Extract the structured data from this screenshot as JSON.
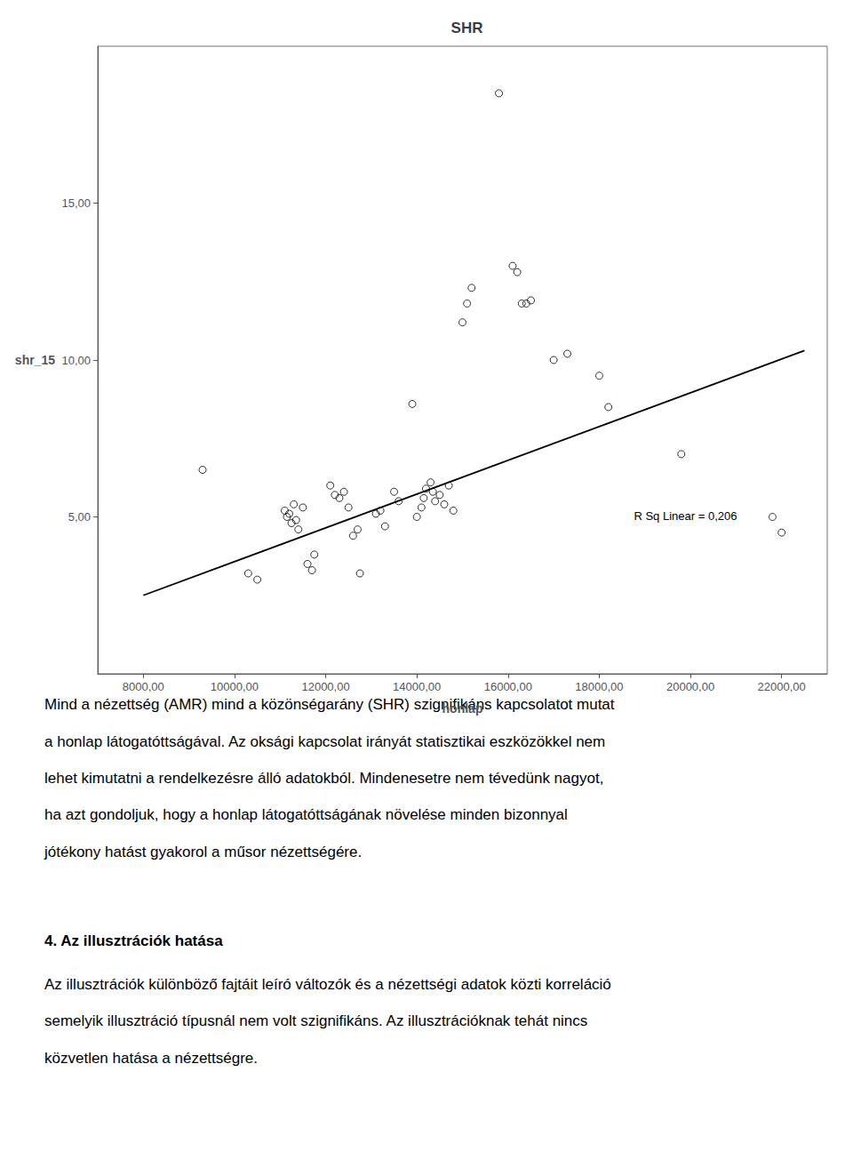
{
  "chart_data": {
    "type": "scatter",
    "title": "SHR",
    "xlabel": "honlap",
    "ylabel": "shr_15",
    "xlim": [
      7000,
      23000
    ],
    "ylim": [
      0,
      20
    ],
    "xticks": [
      {
        "value": 8000,
        "label": "8000,00"
      },
      {
        "value": 10000,
        "label": "10000,00"
      },
      {
        "value": 12000,
        "label": "12000,00"
      },
      {
        "value": 14000,
        "label": "14000,00"
      },
      {
        "value": 16000,
        "label": "16000,00"
      },
      {
        "value": 18000,
        "label": "18000,00"
      },
      {
        "value": 20000,
        "label": "20000,00"
      },
      {
        "value": 22000,
        "label": "22000,00"
      }
    ],
    "yticks": [
      {
        "value": 5.0,
        "label": "5,00"
      },
      {
        "value": 10.0,
        "label": "10,00"
      },
      {
        "value": 15.0,
        "label": "15,00"
      }
    ],
    "grid": false,
    "series": [
      {
        "type": "scatter",
        "color": "#000000",
        "marker": "open_circle",
        "x": [
          9300,
          10300,
          10500,
          11100,
          11150,
          11200,
          11250,
          11300,
          11350,
          11400,
          11500,
          11600,
          11700,
          11750,
          12100,
          12200,
          12300,
          12400,
          12500,
          12600,
          12700,
          12750,
          13100,
          13200,
          13300,
          13500,
          13600,
          13900,
          14000,
          14100,
          14150,
          14200,
          14300,
          14350,
          14400,
          14500,
          14600,
          14700,
          14800,
          15000,
          15100,
          15200,
          15800,
          16100,
          16200,
          16300,
          16400,
          16500,
          17000,
          17300,
          18000,
          18200,
          19800,
          21800,
          22000
        ],
        "values": [
          6.5,
          3.2,
          3.0,
          5.2,
          5.0,
          5.1,
          4.8,
          5.4,
          4.9,
          4.6,
          5.3,
          3.5,
          3.3,
          3.8,
          6.0,
          5.7,
          5.6,
          5.8,
          5.3,
          4.4,
          4.6,
          3.2,
          5.1,
          5.2,
          4.7,
          5.8,
          5.5,
          8.6,
          5.0,
          5.3,
          5.6,
          5.9,
          6.1,
          5.8,
          5.5,
          5.7,
          5.4,
          6.0,
          5.2,
          11.2,
          11.8,
          12.3,
          18.5,
          13.0,
          12.8,
          11.8,
          11.8,
          11.9,
          10.0,
          10.2,
          9.5,
          8.5,
          7.0,
          5.0,
          4.5
        ]
      },
      {
        "type": "line",
        "color": "#000000",
        "x": [
          8000,
          22500
        ],
        "values": [
          2.5,
          10.3
        ]
      }
    ],
    "annotations": [
      "R Sq Linear = 0,206"
    ],
    "body_text": [
      "Mind a nézettség (AMR) mind a közönségarány (SHR) szignifikáns kapcsolatot mutat",
      "a honlap látogatóttságával. Az oksági kapcsolat irányát statisztikai eszközökkel nem",
      "lehet kimutatni a rendelkezésre álló adatokból. Mindenesetre nem tévedünk nagyot,",
      "ha azt gondoljuk, hogy a honlap látogatóttságának növelése minden bizonnyal",
      "jótékony hatást gyakorol a műsor nézettségére."
    ],
    "section_title": "4. Az illusztrációk hatása",
    "section_text": [
      "Az illusztrációk különböző fajtáit leíró változók és a nézettségi adatok közti korreláció",
      "semelyik illusztráció típusnál nem volt szignifikáns. Az illusztrációknak tehát nincs",
      "közvetlen hatása a nézettségre."
    ]
  }
}
